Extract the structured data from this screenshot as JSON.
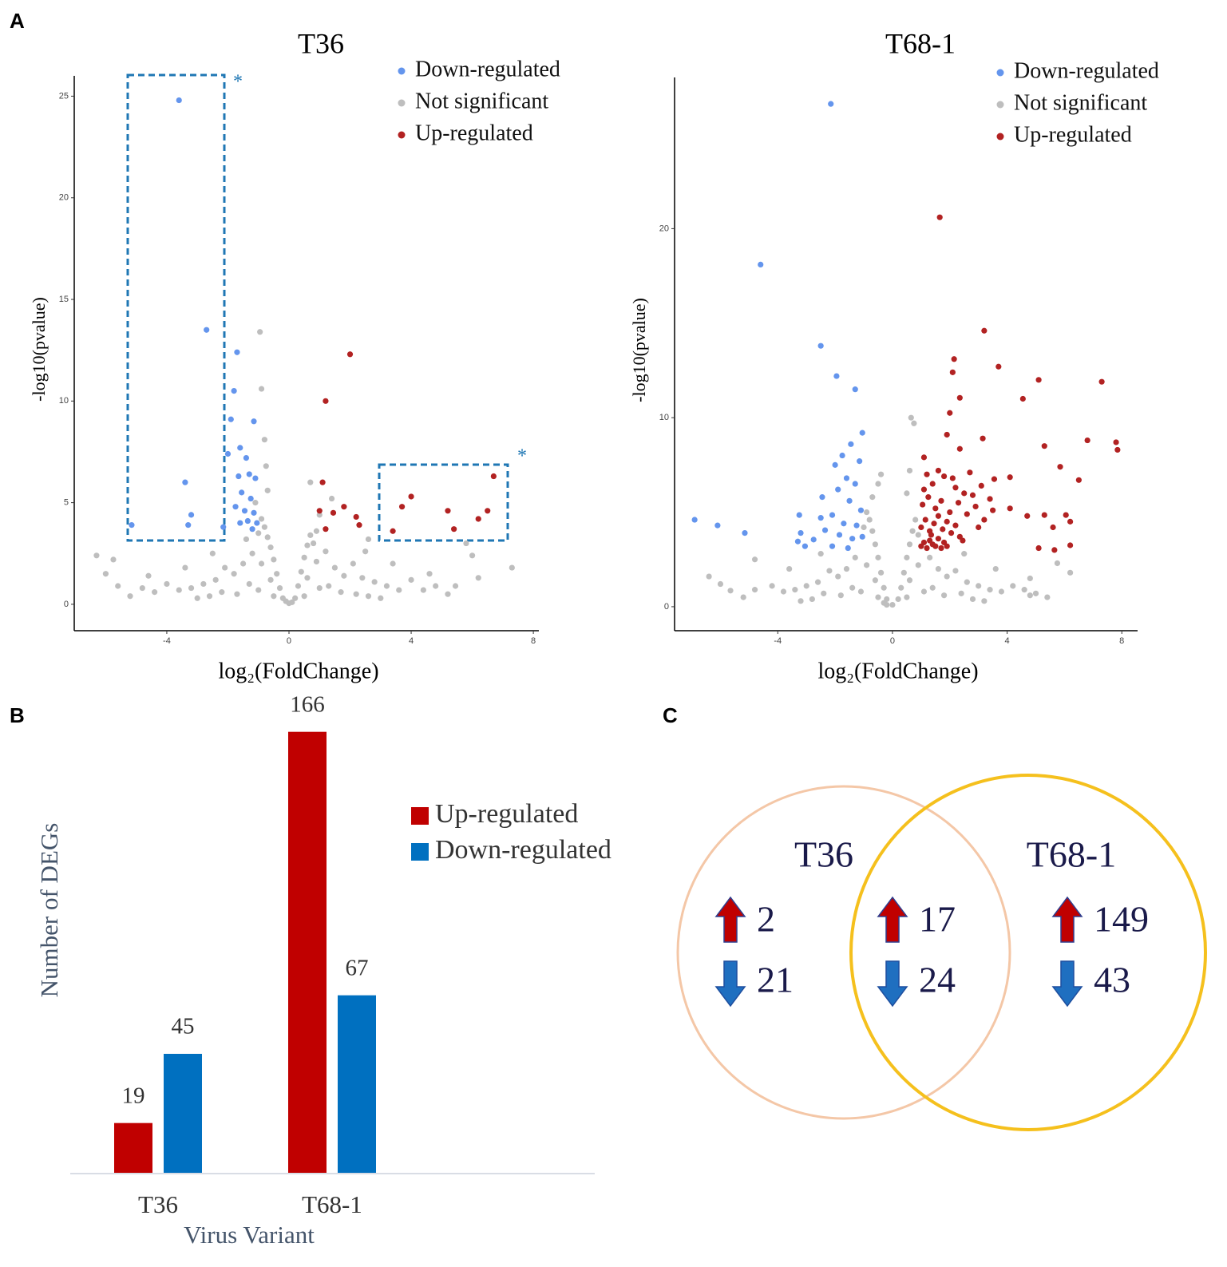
{
  "panels": [
    "A",
    "B",
    "C"
  ],
  "chart_data": [
    {
      "type": "scatter",
      "title": "T36",
      "xlabel": "log₂(FoldChange)",
      "ylabel": "-log10(pvalue)",
      "xlim": [
        -7.03,
        8.18
      ],
      "ylim": [
        -1.3,
        26
      ],
      "xticks": [
        -4,
        0,
        4,
        8
      ],
      "yticks": [
        0,
        5,
        10,
        15,
        20,
        25
      ],
      "legend": "top-right",
      "annotations": [
        "*",
        "*"
      ],
      "series": [
        {
          "name": "Down-regulated",
          "color": "#6495ed",
          "x": [
            -3.6,
            -2.7,
            -3.4,
            -3.2,
            -3.3,
            -5.15,
            -1.7,
            -1.8,
            -1.9,
            -1.15,
            -1.6,
            -2.0,
            -1.4,
            -1.65,
            -1.3,
            -1.1,
            -1.55,
            -1.25,
            -1.75,
            -1.45,
            -1.15,
            -1.35,
            -1.05,
            -1.6,
            -2.15,
            -1.2
          ],
          "values": [
            24.8,
            13.5,
            6.0,
            4.4,
            3.9,
            3.9,
            12.4,
            10.5,
            9.1,
            9.0,
            7.7,
            7.4,
            7.2,
            6.3,
            6.4,
            6.2,
            5.5,
            5.2,
            4.8,
            4.6,
            4.5,
            4.1,
            4.0,
            4.0,
            3.8,
            3.7
          ]
        },
        {
          "name": "Not significant",
          "color": "#bebebe",
          "x": [
            -0.2,
            -0.3,
            -0.4,
            -0.5,
            -0.6,
            -0.7,
            -0.8,
            -0.9,
            -1.0,
            -0.6,
            -0.9,
            -1.2,
            -1.5,
            -1.8,
            -2.1,
            -2.4,
            -2.8,
            -3.2,
            -3.6,
            -4.0,
            -4.4,
            -4.8,
            -5.2,
            -1.3,
            -1.7,
            -2.2,
            -2.6,
            -3.0,
            -0.5,
            -1.0,
            -1.4,
            -1.1,
            -0.7,
            -2.5,
            -3.4,
            -4.6,
            -6.3,
            -5.75,
            -5.6,
            -6.0,
            -0.95,
            -0.9,
            -0.8,
            -0.75,
            0.2,
            0.3,
            0.4,
            0.5,
            0.6,
            0.7,
            0.8,
            0.9,
            0.6,
            0.9,
            1.2,
            1.5,
            1.8,
            2.1,
            2.4,
            2.8,
            3.2,
            3.6,
            4.0,
            4.4,
            4.8,
            5.2,
            1.3,
            1.7,
            2.2,
            2.6,
            3.0,
            0.5,
            1.0,
            2.5,
            3.4,
            4.6,
            0.7,
            1.4,
            1.0,
            2.6,
            5.45,
            6.2,
            7.3,
            6.0,
            5.8,
            0.0,
            0.1,
            -0.1
          ],
          "values": [
            0.3,
            0.8,
            1.5,
            2.2,
            2.8,
            3.3,
            3.8,
            4.2,
            3.5,
            1.2,
            2.0,
            2.5,
            2.0,
            1.5,
            1.8,
            1.2,
            1.0,
            0.8,
            0.7,
            1.0,
            0.6,
            0.8,
            0.4,
            1.0,
            0.5,
            0.6,
            0.4,
            0.3,
            0.4,
            0.7,
            3.2,
            5.0,
            5.6,
            2.5,
            1.8,
            1.4,
            2.4,
            2.2,
            0.9,
            1.5,
            13.4,
            10.6,
            8.1,
            6.8,
            0.3,
            0.9,
            1.6,
            2.3,
            2.9,
            3.4,
            3.0,
            3.6,
            1.3,
            2.1,
            2.6,
            1.8,
            1.4,
            2.0,
            1.3,
            1.1,
            0.9,
            0.7,
            1.2,
            0.7,
            0.9,
            0.5,
            0.9,
            0.6,
            0.5,
            0.4,
            0.3,
            0.4,
            0.8,
            2.6,
            2.0,
            1.5,
            6.0,
            5.2,
            4.4,
            3.2,
            0.9,
            1.3,
            1.8,
            2.4,
            3.0,
            0.05,
            0.1,
            0.15
          ]
        },
        {
          "name": "Up-regulated",
          "color": "#b22222",
          "x": [
            2.0,
            1.2,
            1.1,
            1.0,
            1.45,
            1.8,
            2.2,
            2.3,
            1.2,
            4.0,
            3.7,
            3.4,
            5.2,
            5.4,
            6.2,
            6.5,
            6.7
          ],
          "values": [
            12.3,
            10.0,
            6.0,
            4.6,
            4.5,
            4.8,
            4.3,
            3.9,
            3.7,
            5.3,
            4.8,
            3.6,
            4.6,
            3.7,
            4.2,
            4.6,
            6.3
          ]
        }
      ]
    },
    {
      "type": "scatter",
      "title": "T68-1",
      "xlabel": "log₂(FoldChange)",
      "ylabel": "-log10(pvalue)",
      "xlim": [
        -7.6,
        8.55
      ],
      "ylim": [
        -1.27,
        28
      ],
      "xticks": [
        -4,
        0,
        4,
        8
      ],
      "yticks": [
        0,
        10,
        20
      ],
      "legend": "top-right",
      "series": [
        {
          "name": "Down-regulated",
          "color": "#6495ed",
          "x": [
            -2.15,
            -4.6,
            -2.5,
            -1.95,
            -1.3,
            -6.9,
            -6.1,
            -5.15,
            -1.05,
            -1.45,
            -1.75,
            -2.0,
            -1.15,
            -1.6,
            -1.3,
            -1.9,
            -2.45,
            -1.5,
            -1.1,
            -2.1,
            -3.25,
            -2.5,
            -1.7,
            -1.25,
            -2.35,
            -3.2,
            -1.85,
            -1.4,
            -2.75,
            -3.05,
            -2.1,
            -1.05,
            -1.55,
            -3.3
          ],
          "values": [
            26.6,
            18.1,
            13.8,
            12.2,
            11.5,
            4.6,
            4.3,
            3.9,
            9.2,
            8.6,
            8.0,
            7.5,
            7.7,
            6.8,
            6.5,
            6.2,
            5.8,
            5.6,
            5.1,
            4.85,
            4.85,
            4.7,
            4.4,
            4.3,
            4.05,
            3.9,
            3.8,
            3.6,
            3.55,
            3.2,
            3.2,
            3.7,
            3.1,
            3.45
          ]
        },
        {
          "name": "Not significant",
          "color": "#bebebe",
          "x": [
            -0.2,
            -0.3,
            -0.4,
            -0.5,
            -0.6,
            -0.7,
            -0.8,
            -0.9,
            -1.0,
            -0.6,
            -0.9,
            -1.3,
            -1.6,
            -1.9,
            -2.2,
            -2.6,
            -3.0,
            -3.4,
            -3.8,
            -4.2,
            -4.8,
            -5.2,
            -1.4,
            -1.8,
            -2.4,
            -2.8,
            -3.2,
            -0.5,
            -1.1,
            -0.5,
            -0.7,
            -0.4,
            -2.5,
            -3.6,
            -4.8,
            -6.4,
            -5.65,
            -6.0,
            -0.3,
            -0.2,
            0.2,
            0.3,
            0.4,
            0.5,
            0.6,
            0.7,
            0.8,
            0.9,
            0.6,
            0.9,
            1.3,
            1.6,
            1.9,
            2.2,
            2.6,
            3.0,
            3.4,
            3.8,
            4.2,
            4.6,
            5.0,
            5.4,
            1.4,
            1.8,
            2.4,
            2.8,
            3.2,
            0.5,
            1.1,
            0.65,
            0.75,
            0.6,
            0.5,
            2.5,
            3.6,
            4.8,
            5.75,
            4.8,
            6.2,
            0.0
          ],
          "values": [
            0.4,
            1.0,
            1.8,
            2.6,
            3.3,
            4.0,
            4.6,
            5.0,
            4.2,
            1.4,
            2.2,
            2.6,
            2.0,
            1.6,
            1.9,
            1.3,
            1.1,
            0.9,
            0.8,
            1.1,
            0.9,
            0.5,
            1.0,
            0.6,
            0.7,
            0.4,
            0.3,
            0.5,
            0.8,
            6.5,
            5.8,
            7.0,
            2.8,
            2.0,
            2.5,
            1.6,
            0.85,
            1.2,
            0.2,
            0.1,
            0.4,
            1.0,
            1.8,
            2.6,
            3.3,
            4.0,
            4.6,
            3.8,
            1.4,
            2.2,
            2.6,
            2.0,
            1.6,
            1.9,
            1.3,
            1.1,
            0.9,
            0.8,
            1.1,
            0.9,
            0.7,
            0.5,
            1.0,
            0.6,
            0.7,
            0.4,
            0.3,
            0.5,
            0.8,
            10.0,
            9.7,
            7.2,
            6.0,
            2.8,
            2.0,
            1.5,
            2.3,
            0.6,
            1.8,
            0.1
          ]
        },
        {
          "name": "Up-regulated",
          "color": "#b22222",
          "x": [
            1.65,
            3.2,
            2.15,
            3.7,
            5.1,
            2.1,
            4.55,
            7.3,
            2.35,
            2.0,
            6.8,
            7.8,
            7.85,
            5.3,
            5.85,
            6.5,
            3.15,
            1.9,
            1.1,
            2.35,
            6.05,
            6.2,
            5.6,
            6.2,
            5.1,
            5.65,
            5.3,
            4.7,
            4.1,
            3.55,
            4.1,
            1.0,
            1.1,
            1.2,
            1.3,
            1.4,
            1.5,
            1.6,
            1.7,
            1.8,
            1.9,
            1.0,
            1.15,
            1.3,
            1.45,
            1.6,
            1.75,
            1.9,
            2.05,
            2.2,
            2.35,
            1.05,
            1.25,
            1.5,
            1.7,
            2.0,
            2.3,
            2.6,
            2.9,
            3.2,
            3.5,
            1.1,
            1.4,
            1.8,
            2.2,
            2.5,
            2.8,
            3.1,
            3.4,
            1.2,
            1.6,
            2.1,
            2.7,
            3.0,
            1.35,
            2.45
          ],
          "values": [
            20.6,
            14.6,
            13.1,
            12.7,
            12.0,
            12.4,
            11.0,
            11.9,
            11.05,
            10.25,
            8.8,
            8.7,
            8.3,
            8.5,
            7.4,
            6.7,
            8.9,
            9.1,
            7.9,
            8.35,
            4.85,
            4.5,
            4.2,
            3.25,
            3.1,
            3.0,
            4.85,
            4.8,
            5.2,
            6.75,
            6.85,
            3.2,
            3.4,
            3.1,
            3.5,
            3.3,
            3.2,
            3.6,
            3.1,
            3.4,
            3.2,
            4.2,
            4.6,
            4.0,
            4.4,
            4.8,
            4.1,
            4.5,
            3.9,
            4.3,
            3.7,
            5.4,
            5.8,
            5.2,
            5.6,
            5.0,
            5.5,
            4.9,
            5.3,
            4.6,
            5.1,
            6.2,
            6.5,
            6.9,
            6.3,
            6.0,
            5.9,
            6.4,
            5.7,
            7.0,
            7.2,
            6.8,
            7.1,
            4.2,
            3.8,
            3.5
          ]
        }
      ]
    },
    {
      "type": "bar",
      "ylabel": "Number of DEGs",
      "xlabel": "Virus Variant",
      "categories": [
        "T36",
        "T68-1"
      ],
      "ylim": [
        0,
        180
      ],
      "legend": "right",
      "series": [
        {
          "name": "Up-regulated",
          "color": "#c00000",
          "values": [
            19,
            166
          ]
        },
        {
          "name": "Down-regulated",
          "color": "#0070c0",
          "values": [
            45,
            67
          ]
        }
      ]
    }
  ],
  "venn": {
    "sets": [
      {
        "label": "T36",
        "color": "#f4c7a7"
      },
      {
        "label": "T68-1",
        "color": "#f5c01d"
      }
    ],
    "regions": [
      {
        "up": 2,
        "down": 21
      },
      {
        "up": 17,
        "down": 24
      },
      {
        "up": 149,
        "down": 43
      }
    ]
  }
}
